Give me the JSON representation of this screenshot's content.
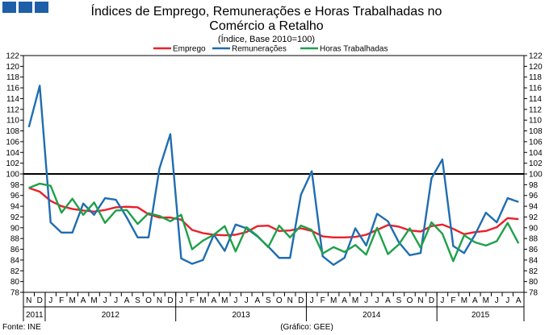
{
  "header": {
    "logo_label": "logo"
  },
  "chart_data": {
    "type": "line",
    "title": "Índices de Emprego, Remunerações e Horas Trabalhadas no Comércio a Retalho",
    "title_line1": "Índices de Emprego, Remunerações e Horas Trabalhadas no",
    "title_line2": "Comércio a Retalho",
    "subtitle": "(Índice, Base 2010=100)",
    "xlabel": "",
    "ylabel": "",
    "ylim": [
      78,
      122
    ],
    "yticks": [
      78,
      80,
      82,
      84,
      86,
      88,
      90,
      92,
      94,
      96,
      98,
      100,
      102,
      104,
      106,
      108,
      110,
      112,
      114,
      116,
      118,
      120,
      122
    ],
    "reference_line": 100,
    "legend_position": "top",
    "categories": [
      "N",
      "D",
      "J",
      "F",
      "M",
      "A",
      "M",
      "J",
      "J",
      "A",
      "S",
      "O",
      "N",
      "D",
      "J",
      "F",
      "M",
      "A",
      "M",
      "J",
      "J",
      "A",
      "S",
      "O",
      "N",
      "D",
      "J",
      "F",
      "M",
      "A",
      "M",
      "J",
      "J",
      "A",
      "S",
      "O",
      "N",
      "D",
      "J",
      "F",
      "M",
      "A",
      "M",
      "J",
      "J",
      "A"
    ],
    "years": [
      {
        "label": "2011",
        "start": 0,
        "end": 1
      },
      {
        "label": "2012",
        "start": 2,
        "end": 13
      },
      {
        "label": "2013",
        "start": 14,
        "end": 25
      },
      {
        "label": "2014",
        "start": 26,
        "end": 37
      },
      {
        "label": "2015",
        "start": 38,
        "end": 45
      }
    ],
    "series": [
      {
        "name": "Emprego",
        "color": "#e8202a",
        "values": [
          97.4,
          96.7,
          95.0,
          94.0,
          93.5,
          93.2,
          93.0,
          93.3,
          93.8,
          93.9,
          93.8,
          92.5,
          91.9,
          91.9,
          91.5,
          89.6,
          89.0,
          88.7,
          88.6,
          88.7,
          89.2,
          90.3,
          90.4,
          89.4,
          89.5,
          89.9,
          89.4,
          88.4,
          88.2,
          88.2,
          88.3,
          88.7,
          89.6,
          90.5,
          90.2,
          89.5,
          89.3,
          90.3,
          90.6,
          89.8,
          88.8,
          89.2,
          89.4,
          90.1,
          91.8,
          91.6
        ]
      },
      {
        "name": "Remunerações",
        "color": "#1f6db0",
        "values": [
          108.7,
          116.4,
          91.0,
          89.1,
          89.1,
          94.5,
          92.4,
          95.5,
          95.2,
          91.9,
          88.2,
          88.2,
          101.0,
          107.4,
          84.3,
          83.3,
          84.0,
          88.7,
          85.7,
          90.6,
          89.9,
          88.4,
          86.5,
          84.4,
          84.4,
          96.1,
          100.5,
          84.7,
          83.1,
          84.4,
          89.9,
          86.7,
          92.6,
          91.2,
          87.3,
          84.9,
          85.3,
          99.2,
          102.7,
          86.6,
          85.3,
          88.7,
          92.8,
          91.0,
          95.5,
          94.8
        ]
      },
      {
        "name": "Horas Trabalhadas",
        "color": "#1fa04a",
        "values": [
          97.4,
          98.2,
          97.8,
          92.8,
          95.4,
          92.4,
          94.7,
          90.9,
          93.2,
          93.3,
          90.7,
          92.7,
          92.2,
          91.2,
          92.4,
          86.0,
          87.6,
          88.7,
          90.3,
          85.6,
          90.1,
          88.5,
          86.4,
          90.4,
          88.2,
          90.4,
          89.6,
          85.2,
          86.4,
          85.5,
          86.8,
          85.0,
          90.0,
          85.1,
          86.9,
          89.9,
          86.3,
          91.0,
          88.9,
          83.8,
          88.6,
          87.3,
          86.7,
          87.5,
          90.9,
          87.1
        ]
      }
    ]
  },
  "footer": {
    "source": "Fonte: INE",
    "credit": "(Gráfico: GEE)"
  }
}
